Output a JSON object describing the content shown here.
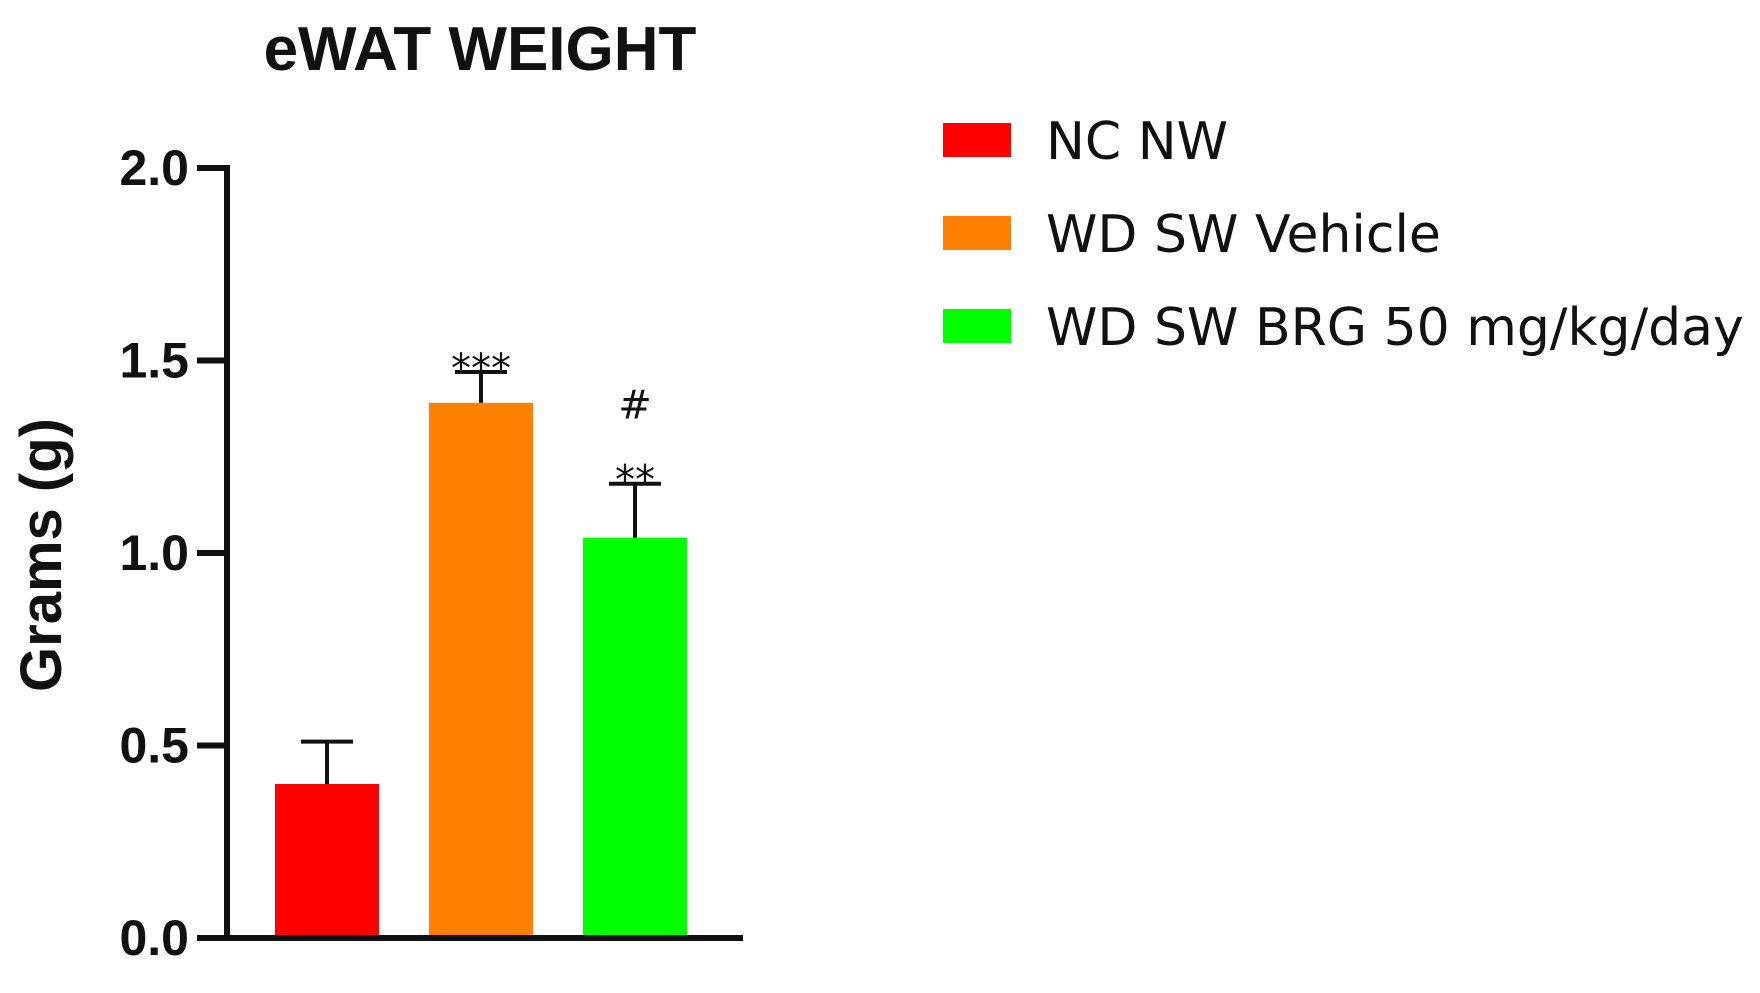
{
  "chart_data": {
    "type": "bar",
    "title": "eWAT WEIGHT",
    "xlabel": "",
    "ylabel": "Grams (g)",
    "ylim": [
      0,
      2.0
    ],
    "yticks": [
      0.0,
      0.5,
      1.0,
      1.5,
      2.0
    ],
    "ytick_labels": [
      "0.0",
      "0.5",
      "1.0",
      "1.5",
      "2.0"
    ],
    "grid": false,
    "legend_position": "top-right",
    "categories": [
      "NC NW",
      "WD SW Vehicle",
      "WD SW BRG 50 mg/kg/day"
    ],
    "values": [
      0.4,
      1.39,
      1.04
    ],
    "error_upper": [
      0.51,
      1.47,
      1.18
    ],
    "colors": [
      "#ff0000",
      "#ff8000",
      "#00ff00"
    ],
    "annotations": [
      [],
      [
        "***"
      ],
      [
        "#",
        "**"
      ]
    ]
  }
}
